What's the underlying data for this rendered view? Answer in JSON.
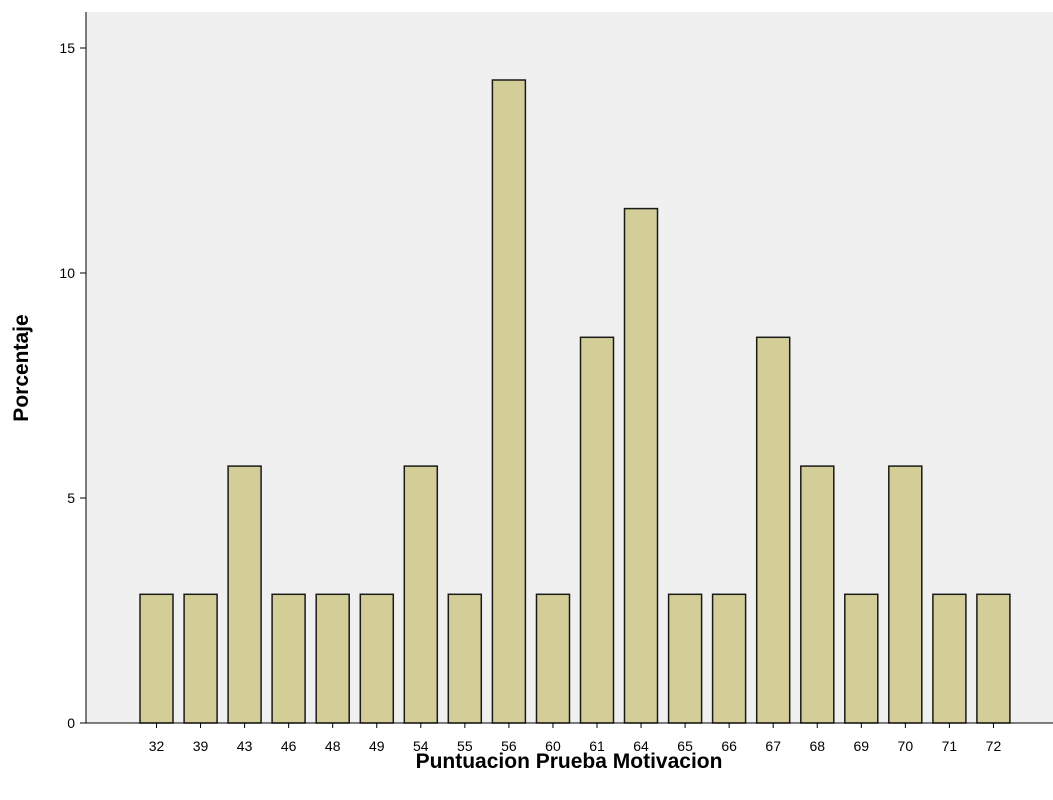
{
  "chart_data": {
    "type": "bar",
    "title": "",
    "xlabel": "Puntuacion Prueba Motivacion",
    "ylabel": "Porcentaje",
    "categories": [
      "32",
      "39",
      "43",
      "46",
      "48",
      "49",
      "54",
      "55",
      "56",
      "60",
      "61",
      "64",
      "65",
      "66",
      "67",
      "68",
      "69",
      "70",
      "71",
      "72"
    ],
    "values": [
      2.86,
      2.86,
      5.71,
      2.86,
      2.86,
      2.86,
      5.71,
      2.86,
      14.29,
      2.86,
      8.57,
      11.43,
      2.86,
      2.86,
      8.57,
      5.71,
      2.86,
      5.71,
      2.86,
      2.86
    ],
    "ylim": [
      0,
      15.7
    ],
    "yticks": [
      0,
      5,
      10,
      15
    ],
    "grid": false,
    "colors": {
      "bar_fill": "#d3ce97",
      "bar_stroke": "#1a1a1a",
      "plot_background": "#f0f0f0",
      "axis": "#000000"
    }
  }
}
